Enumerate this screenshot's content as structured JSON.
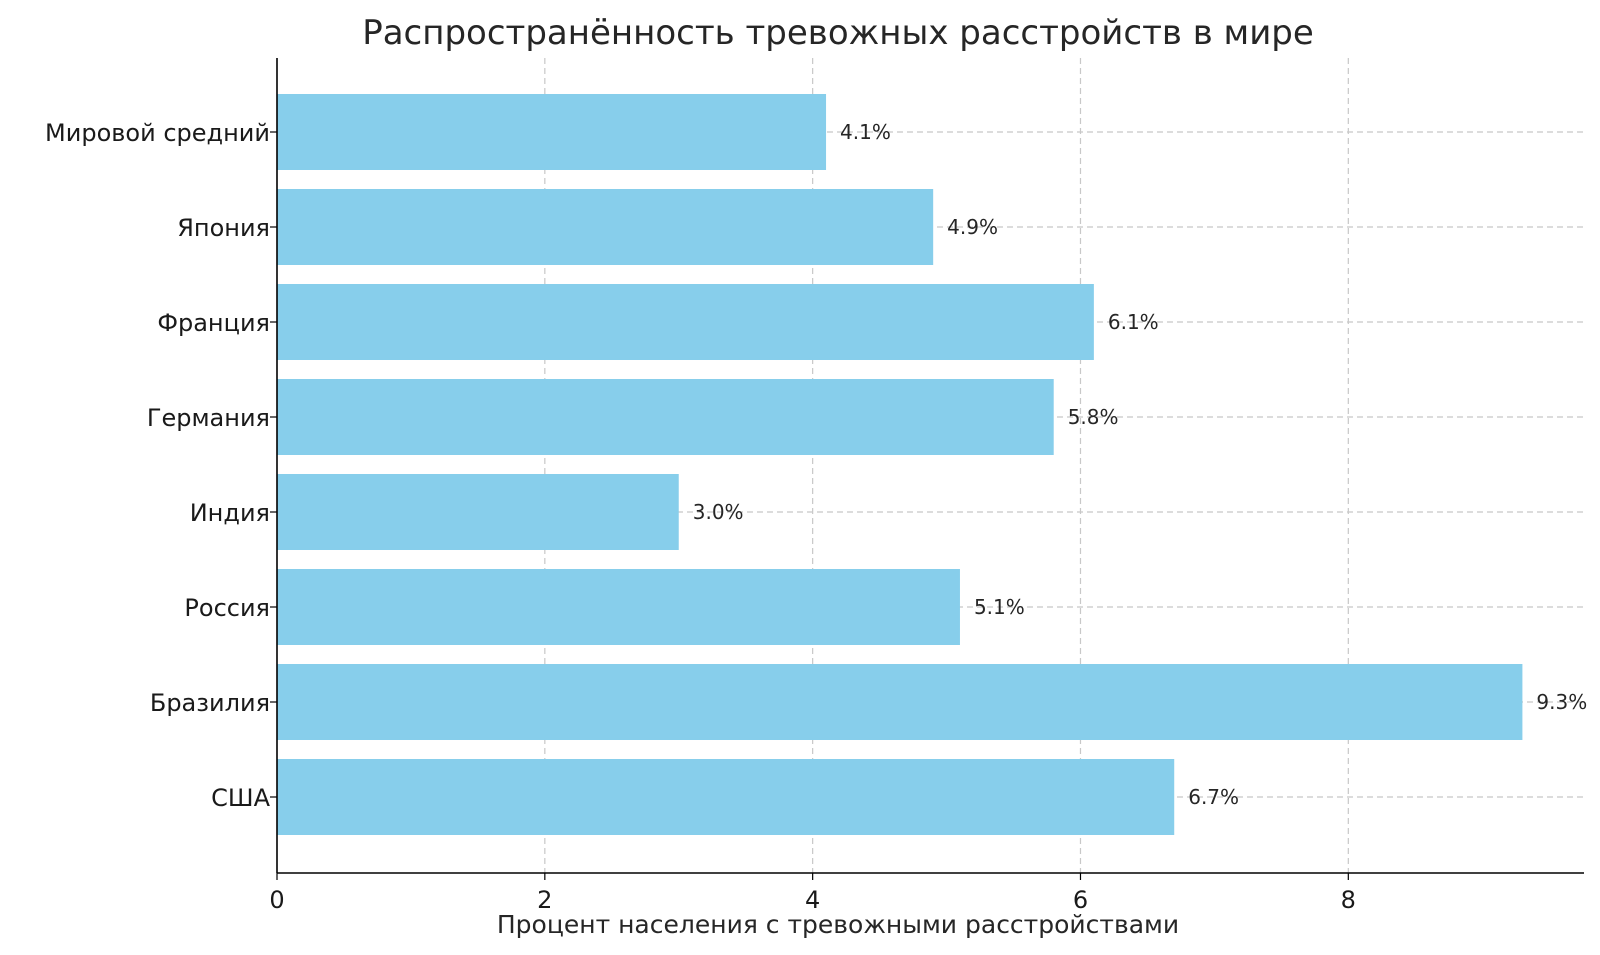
{
  "chart_data": {
    "type": "bar",
    "orientation": "horizontal",
    "title": "Распространённость тревожных расстройств в мире",
    "xlabel": "Процент населения с тревожными расстройствами",
    "ylabel": "",
    "categories": [
      "США",
      "Бразилия",
      "Россия",
      "Индия",
      "Германия",
      "Франция",
      "Япония",
      "Мировой средний"
    ],
    "values": [
      6.7,
      9.3,
      5.1,
      3.0,
      5.8,
      6.1,
      4.9,
      4.1
    ],
    "data_labels": [
      "6.7%",
      "9.3%",
      "5.1%",
      "3.0%",
      "5.8%",
      "6.1%",
      "4.9%",
      "4.1%"
    ],
    "xlim": [
      0,
      9.76
    ],
    "xticks": [
      0,
      2,
      4,
      6,
      8
    ],
    "xtick_labels": [
      "0",
      "2",
      "4",
      "6",
      "8"
    ],
    "grid": true,
    "grid_style": "dashed",
    "bar_color": "#87ceeb"
  }
}
